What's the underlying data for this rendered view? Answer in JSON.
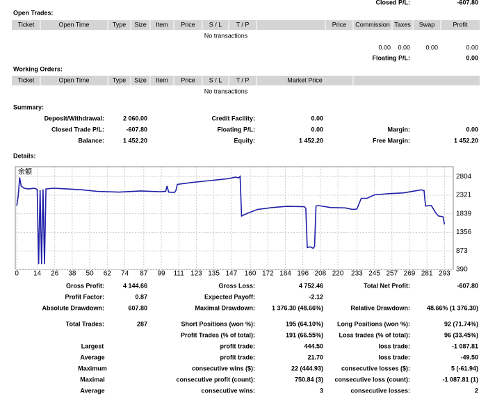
{
  "header": {
    "closed_label": "Closed P/L:",
    "closed_value": "-607.80"
  },
  "open_trades": {
    "title": "Open Trades:",
    "columns": [
      "Ticket",
      "Open Time",
      "Type",
      "Size",
      "Item",
      "Price",
      "S / L",
      "T / P",
      "Price",
      "Commission",
      "Taxes",
      "Swap",
      "Profit"
    ],
    "empty": "No transactions",
    "totals": [
      "0.00",
      "0.00",
      "0.00",
      "0.00"
    ],
    "floating_label": "Floating P/L:",
    "floating_value": "0.00"
  },
  "working_orders": {
    "title": "Working Orders:",
    "columns": [
      "Ticket",
      "Open Time",
      "Type",
      "Size",
      "Item",
      "Price",
      "S / L",
      "T / P",
      "Market Price"
    ],
    "empty": "No transactions"
  },
  "summary": {
    "title": "Summary:",
    "rows": [
      [
        [
          "Deposit/Withdrawal:",
          "2 060.00"
        ],
        [
          "Credit Facility:",
          "0.00"
        ],
        null
      ],
      [
        [
          "Closed Trade P/L:",
          "-607.80"
        ],
        [
          "Floating P/L:",
          "0.00"
        ],
        [
          "Margin:",
          "0.00"
        ]
      ],
      [
        [
          "Balance:",
          "1 452.20"
        ],
        [
          "Equity:",
          "1 452.20"
        ],
        [
          "Free Margin:",
          "1 452.20"
        ]
      ]
    ]
  },
  "details": {
    "title": "Details:"
  },
  "chart_data": {
    "type": "line",
    "title": "余额",
    "color": "#1f1fa8",
    "grid": true,
    "xlim": [
      -1,
      299
    ],
    "ylim": [
      390,
      3060
    ],
    "xticks": [
      0,
      14,
      26,
      38,
      50,
      62,
      74,
      87,
      99,
      111,
      123,
      135,
      147,
      160,
      172,
      184,
      196,
      208,
      220,
      233,
      245,
      257,
      269,
      281,
      293
    ],
    "yticks": [
      390,
      873,
      1356,
      1839,
      2321,
      2804
    ],
    "x": [
      0,
      1,
      2,
      3,
      5,
      8,
      12,
      14,
      15,
      16,
      17,
      18,
      19,
      20,
      25,
      35,
      45,
      55,
      70,
      85,
      98,
      102,
      103,
      104,
      108,
      109,
      110,
      120,
      130,
      140,
      145,
      150,
      152,
      153,
      154,
      158,
      165,
      175,
      185,
      197,
      198,
      199,
      201,
      203,
      204,
      205,
      207,
      215,
      225,
      230,
      233,
      236,
      240,
      245,
      255,
      265,
      277,
      279,
      280,
      284,
      287,
      289,
      292,
      293
    ],
    "values": [
      2050,
      2300,
      2780,
      2560,
      2500,
      2480,
      2500,
      2470,
      530,
      2450,
      530,
      2470,
      530,
      2480,
      2500,
      2480,
      2460,
      2420,
      2400,
      2430,
      2410,
      2420,
      2560,
      2400,
      2390,
      2440,
      2600,
      2650,
      2690,
      2730,
      2750,
      2790,
      2770,
      2810,
      1780,
      1850,
      1950,
      2000,
      2030,
      2020,
      1980,
      960,
      980,
      940,
      990,
      2040,
      2050,
      2000,
      1990,
      1950,
      1960,
      2240,
      2240,
      2330,
      2360,
      2380,
      2460,
      2440,
      2040,
      2050,
      1860,
      1780,
      1760,
      1560
    ]
  },
  "stats": {
    "rows": [
      [
        [
          "Gross Profit:",
          "4 144.66"
        ],
        [
          "Gross Loss:",
          "4 752.46"
        ],
        [
          "Total Net Profit:",
          "-607.80"
        ]
      ],
      [
        [
          "Profit Factor:",
          "0.87"
        ],
        [
          "Expected Payoff:",
          "-2.12"
        ],
        null
      ],
      [
        [
          "Absolute Drawdown:",
          "607.80"
        ],
        [
          "Maximal Drawdown:",
          "1 376.30 (48.66%)"
        ],
        [
          "Relative Drawdown:",
          "48.66% (1 376.30)"
        ]
      ],
      [
        [
          "Total Trades:",
          "287"
        ],
        [
          "Short Positions (won %):",
          "195 (64.10%)"
        ],
        [
          "Long Positions (won %):",
          "92 (71.74%)"
        ]
      ],
      [
        null,
        [
          "Profit Trades (% of total):",
          "191 (66.55%)"
        ],
        [
          "Loss trades (% of total):",
          "96 (33.45%)"
        ]
      ],
      [
        [
          "Largest"
        ],
        [
          "profit trade:",
          "444.50"
        ],
        [
          "loss trade:",
          "-1 087.81"
        ]
      ],
      [
        [
          "Average"
        ],
        [
          "profit trade:",
          "21.70"
        ],
        [
          "loss trade:",
          "-49.50"
        ]
      ],
      [
        [
          "Maximum"
        ],
        [
          "consecutive wins ($):",
          "22 (444.93)"
        ],
        [
          "consecutive losses ($):",
          "5 (-61.94)"
        ]
      ],
      [
        [
          "Maximal"
        ],
        [
          "consecutive profit (count):",
          "750.84 (3)"
        ],
        [
          "consecutive loss (count):",
          "-1 087.81 (1)"
        ]
      ],
      [
        [
          "Average"
        ],
        [
          "consecutive wins:",
          "3"
        ],
        [
          "consecutive losses:",
          "2"
        ]
      ]
    ]
  }
}
